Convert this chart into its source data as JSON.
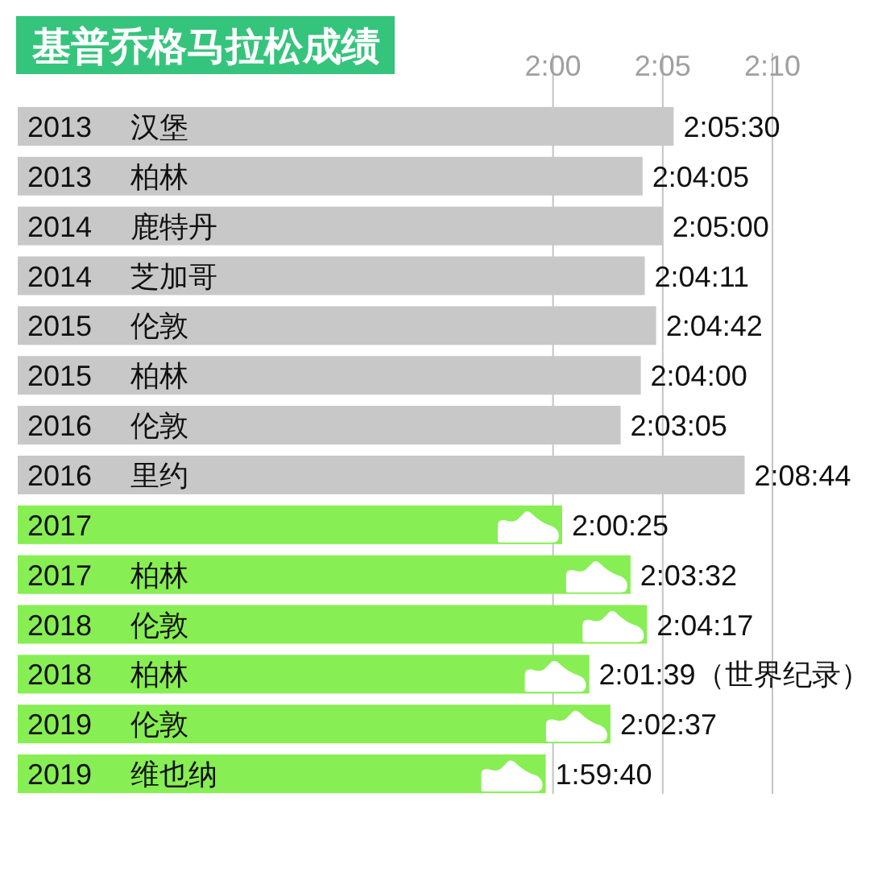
{
  "chart_data": {
    "type": "bar",
    "orientation": "horizontal",
    "title": "基普乔格马拉松成绩",
    "categories": [
      "2013 汉堡",
      "2013 柏林",
      "2014 鹿特丹",
      "2014 芝加哥",
      "2015 伦敦",
      "2015 柏林",
      "2016 伦敦",
      "2016 里约",
      "2017",
      "2017 柏林",
      "2018 伦敦",
      "2018 柏林",
      "2019 伦敦",
      "2019 维也纳"
    ],
    "values": [
      7530,
      7445,
      7500,
      7451,
      7482,
      7440,
      7385,
      7724,
      7225,
      7412,
      7457,
      7299,
      7357,
      7180
    ],
    "colors": [
      "#c8c8c8",
      "#c8c8c8",
      "#c8c8c8",
      "#c8c8c8",
      "#c8c8c8",
      "#c8c8c8",
      "#c8c8c8",
      "#c8c8c8",
      "#87ee53",
      "#87ee53",
      "#87ee53",
      "#87ee53",
      "#87ee53",
      "#87ee53"
    ],
    "value_labels": [
      "2:05:30",
      "2:04:05",
      "2:05:00",
      "2:04:11",
      "2:04:42",
      "2:04:00",
      "2:03:05",
      "2:08:44",
      "2:00:25",
      "2:03:32",
      "2:04:17",
      "2:01:39（世界纪录）",
      "2:02:37",
      "1:59:40"
    ],
    "xlim": [
      5736,
      7800
    ],
    "xticks": [
      {
        "value": 7200,
        "label": "2:00"
      },
      {
        "value": 7500,
        "label": "2:05"
      },
      {
        "value": 7800,
        "label": "2:10"
      }
    ],
    "grid": "x"
  }
}
